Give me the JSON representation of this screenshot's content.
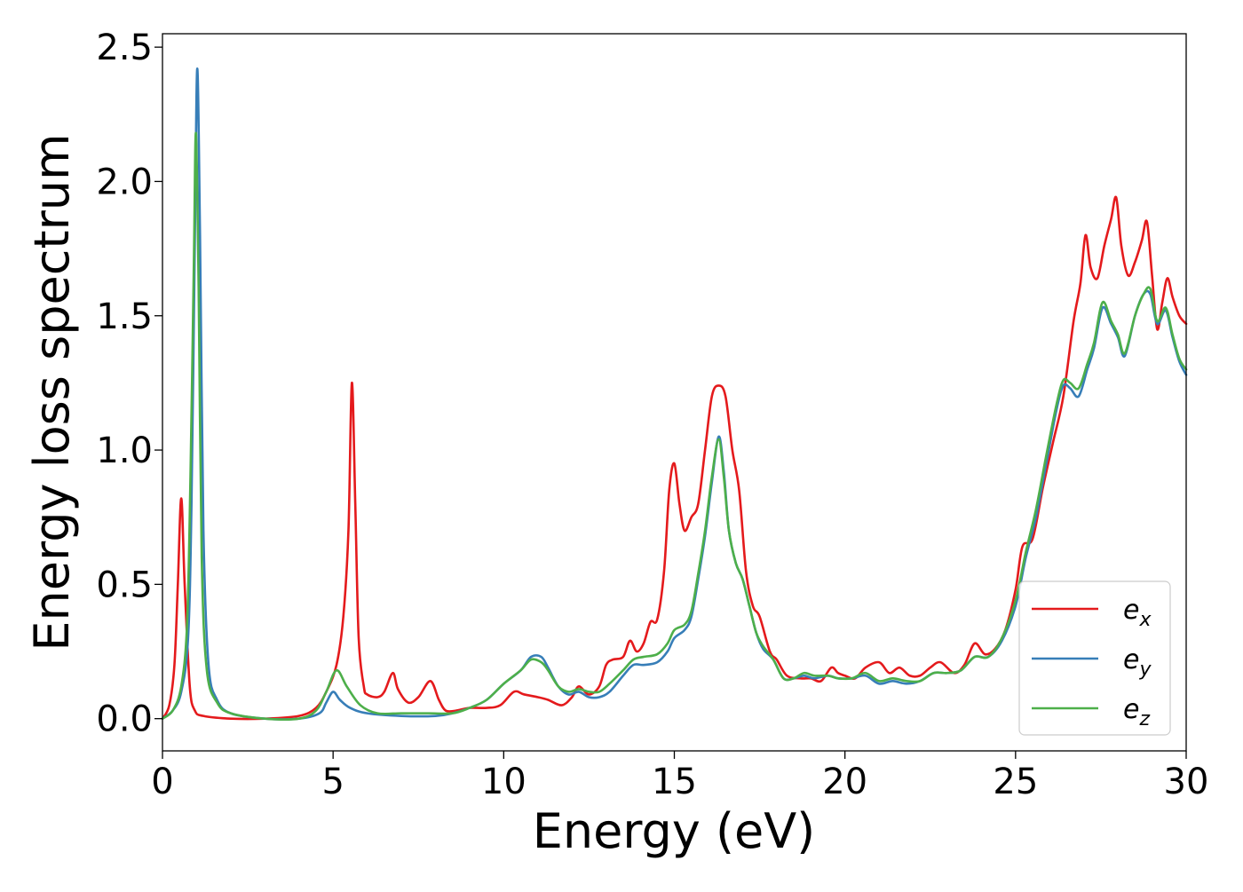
{
  "chart_data": {
    "type": "line",
    "title": "",
    "xlabel": "Energy (eV)",
    "ylabel": "Energy loss spectrum",
    "xlim": [
      0,
      30
    ],
    "ylim": [
      -0.12,
      2.55
    ],
    "xticks": [
      0,
      5,
      10,
      15,
      20,
      25,
      30
    ],
    "xtick_labels": [
      "0",
      "5",
      "10",
      "15",
      "20",
      "25",
      "30"
    ],
    "yticks": [
      0.0,
      0.5,
      1.0,
      1.5,
      2.0,
      2.5
    ],
    "ytick_labels": [
      "0.0",
      "0.5",
      "1.0",
      "1.5",
      "2.0",
      "2.5"
    ],
    "grid": false,
    "legend_position": "lower-right",
    "series": [
      {
        "name": "e",
        "subscript": "x",
        "color": "#e41a1c",
        "points": [
          [
            0,
            0.0
          ],
          [
            0.2,
            0.05
          ],
          [
            0.35,
            0.2
          ],
          [
            0.45,
            0.5
          ],
          [
            0.55,
            0.82
          ],
          [
            0.65,
            0.5
          ],
          [
            0.8,
            0.12
          ],
          [
            0.95,
            0.03
          ],
          [
            1.2,
            0.01
          ],
          [
            2,
            0.0
          ],
          [
            3,
            0.0
          ],
          [
            4,
            0.01
          ],
          [
            4.5,
            0.04
          ],
          [
            4.8,
            0.1
          ],
          [
            5.1,
            0.2
          ],
          [
            5.3,
            0.38
          ],
          [
            5.45,
            0.7
          ],
          [
            5.55,
            1.25
          ],
          [
            5.65,
            0.8
          ],
          [
            5.75,
            0.3
          ],
          [
            5.9,
            0.12
          ],
          [
            6.0,
            0.09
          ],
          [
            6.3,
            0.08
          ],
          [
            6.5,
            0.1
          ],
          [
            6.75,
            0.17
          ],
          [
            6.9,
            0.11
          ],
          [
            7.2,
            0.06
          ],
          [
            7.5,
            0.08
          ],
          [
            7.85,
            0.14
          ],
          [
            8.1,
            0.07
          ],
          [
            8.3,
            0.03
          ],
          [
            8.6,
            0.03
          ],
          [
            9,
            0.04
          ],
          [
            9.5,
            0.04
          ],
          [
            9.9,
            0.05
          ],
          [
            10.3,
            0.1
          ],
          [
            10.6,
            0.09
          ],
          [
            11,
            0.08
          ],
          [
            11.3,
            0.07
          ],
          [
            11.7,
            0.05
          ],
          [
            12.0,
            0.08
          ],
          [
            12.2,
            0.12
          ],
          [
            12.5,
            0.09
          ],
          [
            12.8,
            0.12
          ],
          [
            13.0,
            0.2
          ],
          [
            13.2,
            0.22
          ],
          [
            13.5,
            0.23
          ],
          [
            13.7,
            0.29
          ],
          [
            13.9,
            0.25
          ],
          [
            14.1,
            0.28
          ],
          [
            14.3,
            0.36
          ],
          [
            14.5,
            0.37
          ],
          [
            14.7,
            0.55
          ],
          [
            14.85,
            0.85
          ],
          [
            15.0,
            0.95
          ],
          [
            15.15,
            0.8
          ],
          [
            15.3,
            0.7
          ],
          [
            15.5,
            0.75
          ],
          [
            15.7,
            0.8
          ],
          [
            15.9,
            1.0
          ],
          [
            16.1,
            1.2
          ],
          [
            16.3,
            1.24
          ],
          [
            16.5,
            1.2
          ],
          [
            16.7,
            1.0
          ],
          [
            16.9,
            0.85
          ],
          [
            17.1,
            0.55
          ],
          [
            17.3,
            0.42
          ],
          [
            17.5,
            0.38
          ],
          [
            17.8,
            0.25
          ],
          [
            18.0,
            0.22
          ],
          [
            18.3,
            0.16
          ],
          [
            18.7,
            0.15
          ],
          [
            19.0,
            0.15
          ],
          [
            19.3,
            0.14
          ],
          [
            19.6,
            0.19
          ],
          [
            19.8,
            0.17
          ],
          [
            20.0,
            0.16
          ],
          [
            20.3,
            0.15
          ],
          [
            20.6,
            0.19
          ],
          [
            21.0,
            0.21
          ],
          [
            21.3,
            0.17
          ],
          [
            21.6,
            0.19
          ],
          [
            21.9,
            0.16
          ],
          [
            22.2,
            0.16
          ],
          [
            22.5,
            0.19
          ],
          [
            22.8,
            0.21
          ],
          [
            23.2,
            0.17
          ],
          [
            23.5,
            0.2
          ],
          [
            23.8,
            0.28
          ],
          [
            24.1,
            0.24
          ],
          [
            24.4,
            0.26
          ],
          [
            24.7,
            0.33
          ],
          [
            25.0,
            0.48
          ],
          [
            25.2,
            0.64
          ],
          [
            25.5,
            0.67
          ],
          [
            25.8,
            0.86
          ],
          [
            26.1,
            1.03
          ],
          [
            26.4,
            1.2
          ],
          [
            26.7,
            1.48
          ],
          [
            26.9,
            1.62
          ],
          [
            27.05,
            1.8
          ],
          [
            27.2,
            1.68
          ],
          [
            27.4,
            1.64
          ],
          [
            27.6,
            1.76
          ],
          [
            27.8,
            1.86
          ],
          [
            27.95,
            1.94
          ],
          [
            28.1,
            1.76
          ],
          [
            28.3,
            1.65
          ],
          [
            28.5,
            1.7
          ],
          [
            28.7,
            1.78
          ],
          [
            28.85,
            1.85
          ],
          [
            29.0,
            1.65
          ],
          [
            29.15,
            1.45
          ],
          [
            29.3,
            1.55
          ],
          [
            29.45,
            1.64
          ],
          [
            29.6,
            1.57
          ],
          [
            29.8,
            1.5
          ],
          [
            30,
            1.47
          ]
        ]
      },
      {
        "name": "e",
        "subscript": "y",
        "color": "#377eb8",
        "points": [
          [
            0,
            0.0
          ],
          [
            0.3,
            0.03
          ],
          [
            0.55,
            0.1
          ],
          [
            0.75,
            0.3
          ],
          [
            0.85,
            0.8
          ],
          [
            0.95,
            1.8
          ],
          [
            1.02,
            2.42
          ],
          [
            1.1,
            1.8
          ],
          [
            1.2,
            0.7
          ],
          [
            1.35,
            0.2
          ],
          [
            1.6,
            0.07
          ],
          [
            2,
            0.02
          ],
          [
            3,
            0.0
          ],
          [
            4,
            0.0
          ],
          [
            4.6,
            0.02
          ],
          [
            4.8,
            0.06
          ],
          [
            5.0,
            0.1
          ],
          [
            5.2,
            0.07
          ],
          [
            5.5,
            0.04
          ],
          [
            6,
            0.02
          ],
          [
            7,
            0.01
          ],
          [
            8,
            0.01
          ],
          [
            8.5,
            0.02
          ],
          [
            9,
            0.04
          ],
          [
            9.5,
            0.07
          ],
          [
            10,
            0.13
          ],
          [
            10.5,
            0.18
          ],
          [
            10.8,
            0.23
          ],
          [
            11.1,
            0.23
          ],
          [
            11.3,
            0.19
          ],
          [
            11.6,
            0.12
          ],
          [
            11.9,
            0.09
          ],
          [
            12.2,
            0.1
          ],
          [
            12.5,
            0.08
          ],
          [
            12.8,
            0.08
          ],
          [
            13.1,
            0.1
          ],
          [
            13.5,
            0.16
          ],
          [
            13.8,
            0.2
          ],
          [
            14.1,
            0.2
          ],
          [
            14.5,
            0.21
          ],
          [
            14.8,
            0.25
          ],
          [
            15.0,
            0.3
          ],
          [
            15.3,
            0.33
          ],
          [
            15.5,
            0.38
          ],
          [
            15.7,
            0.52
          ],
          [
            15.9,
            0.68
          ],
          [
            16.1,
            0.88
          ],
          [
            16.3,
            1.05
          ],
          [
            16.45,
            0.92
          ],
          [
            16.6,
            0.7
          ],
          [
            16.8,
            0.58
          ],
          [
            17.0,
            0.52
          ],
          [
            17.2,
            0.42
          ],
          [
            17.4,
            0.32
          ],
          [
            17.6,
            0.26
          ],
          [
            17.9,
            0.22
          ],
          [
            18.2,
            0.15
          ],
          [
            18.5,
            0.15
          ],
          [
            18.8,
            0.16
          ],
          [
            19.1,
            0.15
          ],
          [
            19.5,
            0.16
          ],
          [
            19.8,
            0.15
          ],
          [
            20.2,
            0.15
          ],
          [
            20.6,
            0.16
          ],
          [
            21.0,
            0.13
          ],
          [
            21.4,
            0.14
          ],
          [
            21.8,
            0.13
          ],
          [
            22.2,
            0.14
          ],
          [
            22.6,
            0.17
          ],
          [
            23.0,
            0.17
          ],
          [
            23.4,
            0.18
          ],
          [
            23.8,
            0.23
          ],
          [
            24.2,
            0.23
          ],
          [
            24.6,
            0.29
          ],
          [
            25.0,
            0.42
          ],
          [
            25.3,
            0.6
          ],
          [
            25.6,
            0.75
          ],
          [
            25.9,
            0.95
          ],
          [
            26.2,
            1.15
          ],
          [
            26.4,
            1.24
          ],
          [
            26.6,
            1.23
          ],
          [
            26.85,
            1.2
          ],
          [
            27.1,
            1.3
          ],
          [
            27.3,
            1.38
          ],
          [
            27.55,
            1.53
          ],
          [
            27.8,
            1.47
          ],
          [
            28.0,
            1.42
          ],
          [
            28.2,
            1.35
          ],
          [
            28.5,
            1.5
          ],
          [
            28.75,
            1.58
          ],
          [
            28.95,
            1.58
          ],
          [
            29.15,
            1.47
          ],
          [
            29.4,
            1.52
          ],
          [
            29.6,
            1.42
          ],
          [
            29.8,
            1.33
          ],
          [
            30,
            1.28
          ]
        ]
      },
      {
        "name": "e",
        "subscript": "z",
        "color": "#4daf4a",
        "points": [
          [
            0,
            0.0
          ],
          [
            0.3,
            0.03
          ],
          [
            0.55,
            0.12
          ],
          [
            0.72,
            0.35
          ],
          [
            0.82,
            0.9
          ],
          [
            0.92,
            1.7
          ],
          [
            0.98,
            2.18
          ],
          [
            1.06,
            1.6
          ],
          [
            1.15,
            0.6
          ],
          [
            1.3,
            0.18
          ],
          [
            1.6,
            0.06
          ],
          [
            2,
            0.02
          ],
          [
            3,
            0.0
          ],
          [
            4,
            0.0
          ],
          [
            4.5,
            0.03
          ],
          [
            4.8,
            0.1
          ],
          [
            5.1,
            0.18
          ],
          [
            5.4,
            0.12
          ],
          [
            5.8,
            0.05
          ],
          [
            6.3,
            0.02
          ],
          [
            7,
            0.02
          ],
          [
            7.8,
            0.02
          ],
          [
            8.5,
            0.02
          ],
          [
            9,
            0.04
          ],
          [
            9.5,
            0.07
          ],
          [
            10,
            0.13
          ],
          [
            10.5,
            0.18
          ],
          [
            10.8,
            0.22
          ],
          [
            11.1,
            0.21
          ],
          [
            11.3,
            0.18
          ],
          [
            11.6,
            0.12
          ],
          [
            11.9,
            0.1
          ],
          [
            12.2,
            0.11
          ],
          [
            12.5,
            0.1
          ],
          [
            12.8,
            0.1
          ],
          [
            13.1,
            0.13
          ],
          [
            13.5,
            0.18
          ],
          [
            13.8,
            0.22
          ],
          [
            14.1,
            0.23
          ],
          [
            14.5,
            0.24
          ],
          [
            14.8,
            0.28
          ],
          [
            15.0,
            0.33
          ],
          [
            15.3,
            0.35
          ],
          [
            15.5,
            0.4
          ],
          [
            15.7,
            0.54
          ],
          [
            15.9,
            0.7
          ],
          [
            16.1,
            0.9
          ],
          [
            16.3,
            1.04
          ],
          [
            16.45,
            0.9
          ],
          [
            16.6,
            0.7
          ],
          [
            16.8,
            0.58
          ],
          [
            17.0,
            0.52
          ],
          [
            17.2,
            0.42
          ],
          [
            17.4,
            0.32
          ],
          [
            17.6,
            0.27
          ],
          [
            17.9,
            0.22
          ],
          [
            18.2,
            0.15
          ],
          [
            18.5,
            0.15
          ],
          [
            18.8,
            0.17
          ],
          [
            19.1,
            0.16
          ],
          [
            19.5,
            0.16
          ],
          [
            19.8,
            0.15
          ],
          [
            20.2,
            0.15
          ],
          [
            20.6,
            0.17
          ],
          [
            21.0,
            0.14
          ],
          [
            21.4,
            0.15
          ],
          [
            21.8,
            0.14
          ],
          [
            22.2,
            0.14
          ],
          [
            22.6,
            0.17
          ],
          [
            23.0,
            0.17
          ],
          [
            23.4,
            0.18
          ],
          [
            23.8,
            0.23
          ],
          [
            24.2,
            0.23
          ],
          [
            24.6,
            0.3
          ],
          [
            25.0,
            0.44
          ],
          [
            25.3,
            0.62
          ],
          [
            25.6,
            0.78
          ],
          [
            25.9,
            0.98
          ],
          [
            26.2,
            1.17
          ],
          [
            26.4,
            1.26
          ],
          [
            26.6,
            1.25
          ],
          [
            26.85,
            1.23
          ],
          [
            27.1,
            1.32
          ],
          [
            27.3,
            1.4
          ],
          [
            27.55,
            1.55
          ],
          [
            27.8,
            1.48
          ],
          [
            28.0,
            1.43
          ],
          [
            28.2,
            1.36
          ],
          [
            28.5,
            1.5
          ],
          [
            28.75,
            1.58
          ],
          [
            28.95,
            1.6
          ],
          [
            29.15,
            1.48
          ],
          [
            29.4,
            1.53
          ],
          [
            29.6,
            1.43
          ],
          [
            29.8,
            1.34
          ],
          [
            30,
            1.3
          ]
        ]
      }
    ]
  }
}
